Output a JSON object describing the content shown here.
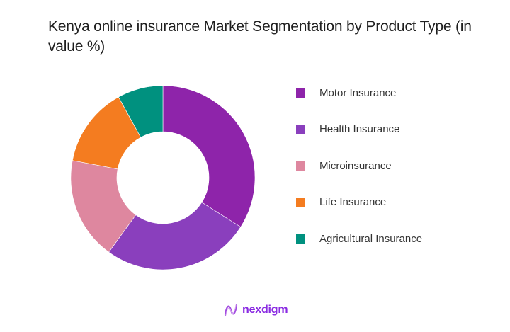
{
  "title": "Kenya online insurance Market Segmentation by Product Type (in value %)",
  "logo": {
    "text": "nexdigm",
    "color": "#8b2fd9"
  },
  "chart_data": {
    "type": "pie",
    "variant": "donut",
    "title": "Kenya online insurance Market Segmentation by Product Type (in value %)",
    "categories": [
      "Motor Insurance",
      "Health Insurance",
      "Microinsurance",
      "Life Insurance",
      "Agricultural Insurance"
    ],
    "values": [
      34,
      26,
      18,
      14,
      8
    ],
    "colors": [
      "#8e24aa",
      "#8a3fbd",
      "#de879f",
      "#f47c20",
      "#00917f"
    ],
    "start_angle": "12 o'clock",
    "direction": "clockwise",
    "legend_position": "right",
    "data_labels": false
  },
  "legend": {
    "items": [
      {
        "label": "Motor Insurance",
        "color": "#8e24aa"
      },
      {
        "label": "Health Insurance",
        "color": "#8a3fbd"
      },
      {
        "label": "Microinsurance",
        "color": "#de879f"
      },
      {
        "label": "Life Insurance",
        "color": "#f47c20"
      },
      {
        "label": "Agricultural Insurance",
        "color": "#00917f"
      }
    ]
  }
}
